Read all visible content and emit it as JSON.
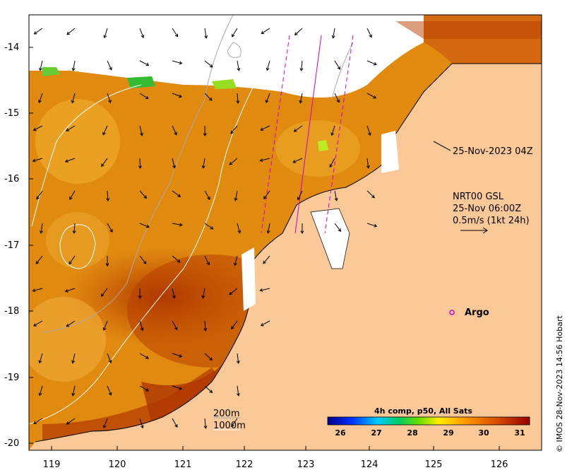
{
  "y_axis": {
    "ticks": [
      "-14",
      "-15",
      "-16",
      "-17",
      "-18",
      "-19",
      "-20"
    ]
  },
  "x_axis": {
    "ticks": [
      "119",
      "120",
      "121",
      "122",
      "123",
      "124",
      "125",
      "126"
    ]
  },
  "annotations": {
    "satellite_time": "25-Nov-2023 04Z",
    "current_line1": "NRT00 GSL",
    "current_line2": "25-Nov 06:00Z",
    "current_line3": "0.5m/s (1kt 24h)",
    "argo_label": "Argo",
    "contour_200": "200m",
    "contour_1000": "1000m"
  },
  "colorbar": {
    "title": "4h comp, p50, All Sats",
    "ticks": [
      "26",
      "27",
      "28",
      "29",
      "30",
      "31"
    ],
    "min": 25.6,
    "max": 31.4
  },
  "credit": "© IMOS 28-Nov-2023 14:56 Hobart",
  "colors": {
    "land": "#fbc998",
    "coast": "#000000",
    "argo": "#cc00cc"
  }
}
